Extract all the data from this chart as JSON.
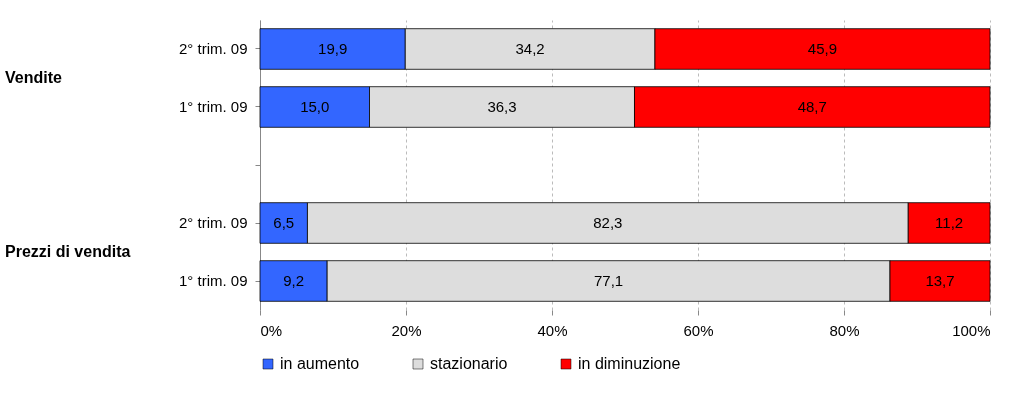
{
  "chart_data": {
    "type": "bar",
    "orientation": "horizontal",
    "stacked": true,
    "categories": [
      "2° trim. 09",
      "1° trim. 09",
      null,
      "2° trim. 09",
      "1° trim. 09"
    ],
    "series": [
      {
        "name": "in aumento",
        "color": "#3366ff",
        "values": [
          19.9,
          15.0,
          null,
          6.5,
          9.2
        ],
        "value_labels": [
          "19,9",
          "15,0",
          null,
          "6,5",
          "9,2"
        ]
      },
      {
        "name": "stazionario",
        "color": "#dddddd",
        "values": [
          34.2,
          36.3,
          null,
          82.3,
          77.1
        ],
        "value_labels": [
          "34,2",
          "36,3",
          null,
          "82,3",
          "77,1"
        ]
      },
      {
        "name": "in diminuzione",
        "color": "#ff0000",
        "values": [
          45.9,
          48.7,
          null,
          11.2,
          13.7
        ],
        "value_labels": [
          "45,9",
          "48,7",
          null,
          "11,2",
          "13,7"
        ]
      }
    ],
    "xlim": [
      0,
      100
    ],
    "xticks": [
      {
        "value": 0,
        "label": "0%"
      },
      {
        "value": 20,
        "label": "20%"
      },
      {
        "value": 40,
        "label": "40%"
      },
      {
        "value": 60,
        "label": "60%"
      },
      {
        "value": 80,
        "label": "80%"
      },
      {
        "value": 100,
        "label": "100%"
      }
    ],
    "grid": "x",
    "legend": "bottom",
    "annotations": [
      "Vendite",
      "Prezzi di vendita"
    ]
  }
}
